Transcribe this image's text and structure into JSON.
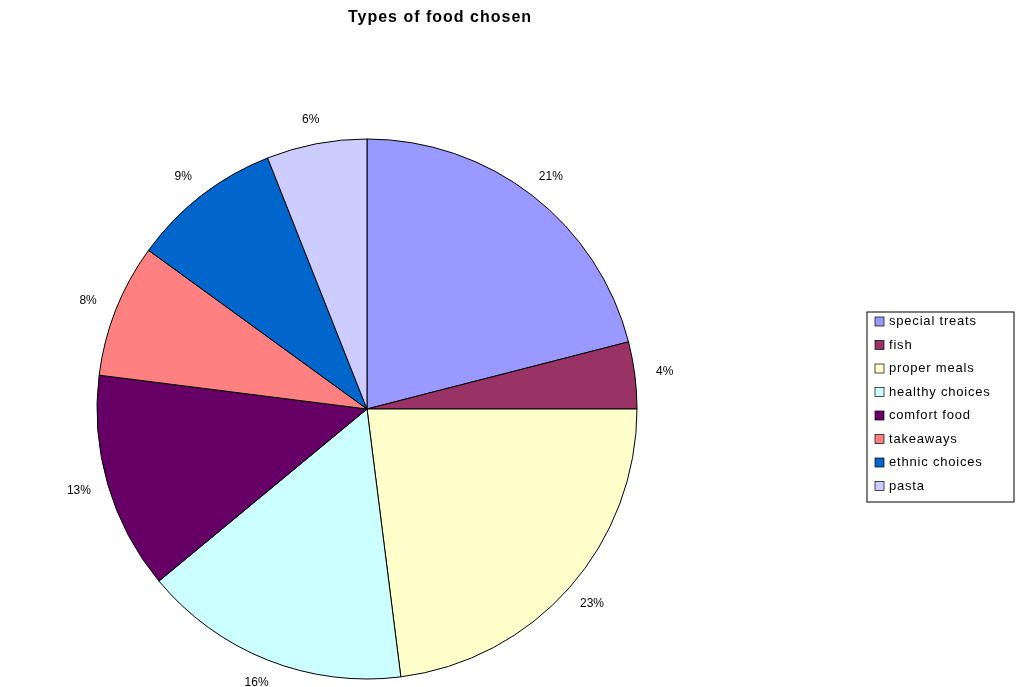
{
  "chart_data": {
    "type": "pie",
    "title": "Types of food chosen",
    "categories": [
      "special treats",
      "fish",
      "proper meals",
      "healthy choices",
      "comfort food",
      "takeaways",
      "ethnic choices",
      "pasta"
    ],
    "values": [
      21,
      4,
      23,
      16,
      13,
      8,
      9,
      6
    ],
    "colors": [
      "#9999ff",
      "#993366",
      "#ffffcc",
      "#ccffff",
      "#660066",
      "#ff8080",
      "#0066cc",
      "#ccccff"
    ],
    "value_labels": [
      "21%",
      "4%",
      "23%",
      "16%",
      "13%",
      "8%",
      "9%",
      "6%"
    ],
    "legend": "right"
  }
}
